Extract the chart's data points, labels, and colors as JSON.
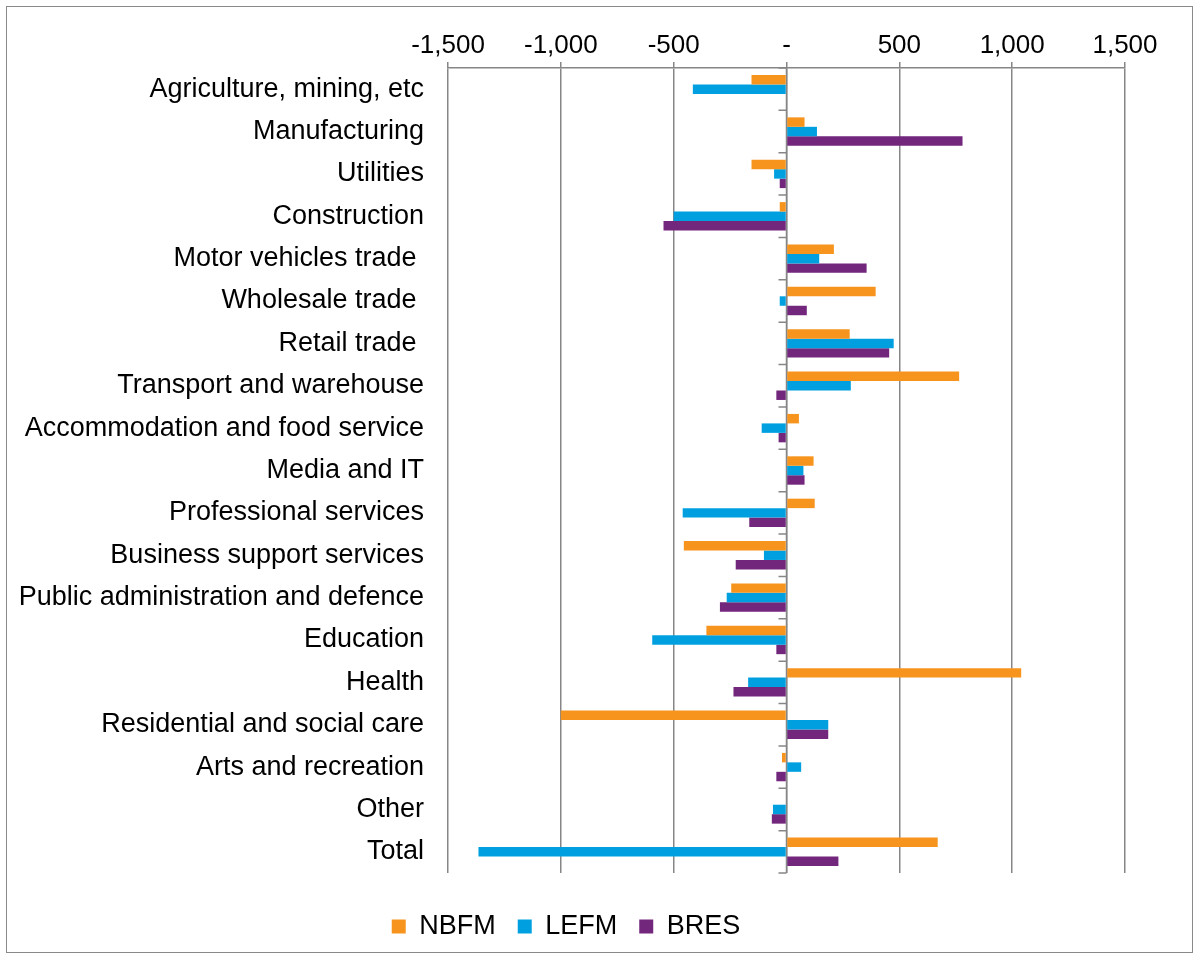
{
  "chart_data": {
    "type": "bar",
    "orientation": "horizontal",
    "categories": [
      "Agriculture, mining, etc",
      "Manufacturing",
      "Utilities",
      "Construction",
      "Motor vehicles trade ",
      "Wholesale trade ",
      "Retail trade ",
      "Transport and warehouse",
      "Accommodation and food service",
      "Media and IT",
      "Professional services",
      "Business support services",
      "Public administration and defence",
      "Education",
      "Health",
      "Residential and social care",
      "Arts and recreation",
      "Other",
      "Total"
    ],
    "series": [
      {
        "name": "NBFM",
        "color": "#f7941e",
        "values": [
          -155,
          80,
          -155,
          -30,
          210,
          395,
          280,
          765,
          55,
          120,
          125,
          -455,
          -245,
          -355,
          1040,
          -1000,
          -20,
          null,
          670
        ]
      },
      {
        "name": "LEFM",
        "color": "#00a0e0",
        "values": [
          -415,
          135,
          -55,
          -500,
          145,
          -30,
          475,
          285,
          -110,
          75,
          -460,
          -100,
          -265,
          -595,
          -170,
          185,
          65,
          -60,
          -1365
        ]
      },
      {
        "name": "BRES",
        "color": "#72267c",
        "values": [
          null,
          780,
          -30,
          -545,
          355,
          90,
          455,
          -45,
          -35,
          80,
          -165,
          -225,
          -295,
          -45,
          -235,
          185,
          -45,
          -65,
          230
        ]
      }
    ],
    "xlim": [
      -1500,
      1500
    ],
    "xticks": [
      {
        "value": -1500,
        "label": "-1,500"
      },
      {
        "value": -1000,
        "label": "-1,000"
      },
      {
        "value": -500,
        "label": "-500"
      },
      {
        "value": 0,
        "label": "-"
      },
      {
        "value": 500,
        "label": "500"
      },
      {
        "value": 1000,
        "label": "1,000"
      },
      {
        "value": 1500,
        "label": "1,500"
      }
    ],
    "grid": "x",
    "legend": "bottom"
  }
}
